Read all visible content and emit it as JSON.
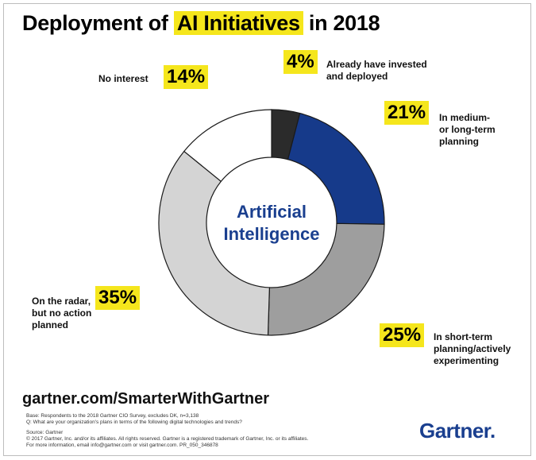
{
  "title": {
    "before": "Deployment of ",
    "highlight": "AI Initiatives",
    "after": " in 2018"
  },
  "center_label": {
    "line1": "Artificial",
    "line2": "Intelligence"
  },
  "chart_data": {
    "type": "pie",
    "donut": true,
    "title": "Deployment of AI Initiatives in 2018",
    "slices": [
      {
        "label": "Already have invested and deployed",
        "value": 4,
        "display": "4%",
        "color": "#2b2b2b"
      },
      {
        "label": "In medium- or long-term planning",
        "value": 21,
        "display": "21%",
        "color": "#163a8a"
      },
      {
        "label": "In short-term planning/actively experimenting",
        "value": 25,
        "display": "25%",
        "color": "#9e9e9e"
      },
      {
        "label": "On the radar, but no action planned",
        "value": 35,
        "display": "35%",
        "color": "#d4d4d4"
      },
      {
        "label": "No interest",
        "value": 14,
        "display": "14%",
        "color": "#ffffff"
      }
    ]
  },
  "labels": {
    "s0": {
      "pct": "4%",
      "line1": "Already have invested",
      "line2": "and deployed"
    },
    "s1": {
      "pct": "21%",
      "line1": "In medium-",
      "line2": "or long-term",
      "line3": "planning"
    },
    "s2": {
      "pct": "25%",
      "line1": "In short-term",
      "line2": "planning/actively",
      "line3": "experimenting"
    },
    "s3": {
      "pct": "35%",
      "line1": "On the radar,",
      "line2": "but no action",
      "line3": "planned"
    },
    "s4": {
      "pct": "14%",
      "line1": "No interest"
    }
  },
  "footer": {
    "url": "gartner.com/SmarterWithGartner",
    "base": "Base: Respondents to the 2018 Gartner CIO Survey, excludes DK, n=3,138",
    "question": "Q: What are your organization's plans in terms of the following digital technologies and trends?",
    "source": "Source: Gartner",
    "copyright": "© 2017 Gartner, Inc. and/or its affiliates. All rights reserved. Gartner is a registered trademark of Gartner, Inc. or its affiliates.",
    "info": "For more information, email info@gartner.com or visit gartner.com.  PR_050_346878",
    "brand": "Gartner",
    "brand_dot": "."
  }
}
